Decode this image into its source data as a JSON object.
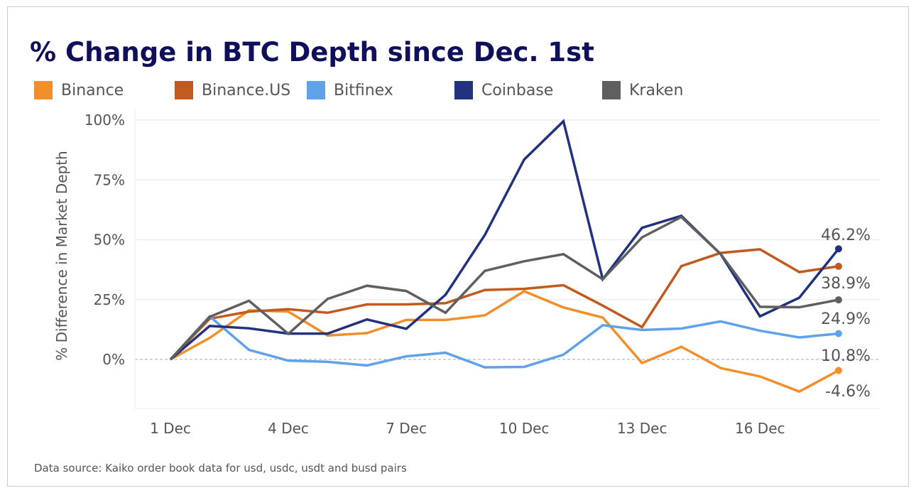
{
  "chart_data": {
    "type": "line",
    "title": "% Change in BTC Depth since Dec. 1st",
    "ylabel": "% Difference in Market Depth",
    "xlabel": "",
    "x": [
      "1 Dec",
      "2 Dec",
      "3 Dec",
      "4 Dec",
      "5 Dec",
      "6 Dec",
      "7 Dec",
      "8 Dec",
      "9 Dec",
      "10 Dec",
      "11 Dec",
      "12 Dec",
      "13 Dec",
      "14 Dec",
      "15 Dec",
      "16 Dec",
      "17 Dec",
      "18 Dec"
    ],
    "xticks": [
      "1 Dec",
      "4 Dec",
      "7 Dec",
      "10 Dec",
      "13 Dec",
      "16 Dec"
    ],
    "yticks": [
      "0%",
      "25%",
      "50%",
      "75%",
      "100%"
    ],
    "ylim": [
      -20,
      100
    ],
    "grid": true,
    "legend": "top",
    "series": [
      {
        "name": "Binance",
        "color": "#f28e2b",
        "values": [
          0,
          9,
          20.5,
          20,
          10,
          11,
          16.5,
          16.5,
          18.4,
          28.5,
          21.7,
          17.5,
          -1.5,
          5.3,
          -3.6,
          -7.1,
          -13.4,
          -4.6
        ],
        "end_label": "-4.6%"
      },
      {
        "name": "Binance.US",
        "color": "#c05a1f",
        "values": [
          0,
          17,
          20,
          21,
          19.5,
          23,
          23,
          23.5,
          29,
          29.5,
          31,
          22.5,
          13.5,
          39,
          44.5,
          46,
          36.5,
          38.9
        ],
        "end_label": "38.9%"
      },
      {
        "name": "Bitfinex",
        "color": "#5fa2ea",
        "values": [
          0,
          18,
          4,
          -0.5,
          -1,
          -2.5,
          1.3,
          2.8,
          -3.3,
          -3.1,
          2,
          14.3,
          12.3,
          12.9,
          15.9,
          12,
          9.2,
          10.8
        ],
        "end_label": "10.8%"
      },
      {
        "name": "Coinbase",
        "color": "#23327f",
        "values": [
          0,
          14,
          13,
          10.8,
          10.8,
          16.7,
          12.8,
          27,
          52,
          83.5,
          99.5,
          33.5,
          55,
          60,
          44,
          18,
          25.8,
          46.2
        ],
        "end_label": "46.2%"
      },
      {
        "name": "Kraken",
        "color": "#5f5f5f",
        "values": [
          0,
          17.8,
          24.5,
          10.7,
          25.3,
          30.8,
          28.6,
          19.5,
          37,
          41,
          44,
          33.5,
          51,
          59.5,
          44,
          22,
          21.8,
          24.9
        ],
        "end_label": "24.9%"
      }
    ]
  },
  "source": "Data source: Kaiko order book data for usd, usdc, usdt and busd pairs"
}
